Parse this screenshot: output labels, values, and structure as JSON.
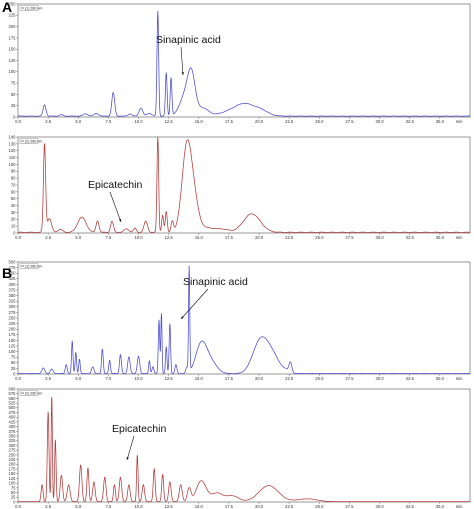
{
  "figure": {
    "panels": [
      {
        "label": "A",
        "first_chart": 0
      },
      {
        "label": "B",
        "first_chart": 2
      }
    ]
  },
  "chart_data": [
    {
      "type": "line",
      "panel": "A",
      "color": "#4a4ad0",
      "xlim": [
        0,
        37.5
      ],
      "ylim": [
        0,
        250
      ],
      "x_ticks": [
        "0.0",
        "2.5",
        "5.0",
        "7.5",
        "10.0",
        "12.5",
        "15.0",
        "17.5",
        "20.0",
        "22.5",
        "25.0",
        "27.5",
        "30.0",
        "32.5",
        "35.0",
        "min"
      ],
      "y_ticks": [
        "0",
        "25",
        "50",
        "75",
        "100",
        "125",
        "150",
        "175",
        "200",
        "225",
        "250"
      ],
      "baseline": 2,
      "peaks": [
        [
          2.2,
          25,
          0.12
        ],
        [
          3.6,
          3,
          0.15
        ],
        [
          5.6,
          5,
          0.2
        ],
        [
          6.5,
          6,
          0.18
        ],
        [
          7.9,
          52,
          0.12
        ],
        [
          9.3,
          5,
          0.15
        ],
        [
          10.2,
          18,
          0.15
        ],
        [
          10.9,
          6,
          0.2
        ],
        [
          11.6,
          232,
          0.07
        ],
        [
          12.3,
          96,
          0.07
        ],
        [
          12.7,
          84,
          0.07
        ],
        [
          13.9,
          48,
          0.45
        ],
        [
          14.4,
          76,
          0.3
        ],
        [
          15.3,
          18,
          0.5
        ],
        [
          17.0,
          3,
          0.6
        ],
        [
          18.8,
          28,
          1.0
        ],
        [
          20.3,
          6,
          0.5
        ]
      ],
      "annotations": [
        {
          "text": "Sinapinic acid",
          "x": 14.4,
          "y": 82
        }
      ]
    },
    {
      "type": "line",
      "panel": "A",
      "color": "#b23a3a",
      "xlim": [
        0,
        37.5
      ],
      "ylim": [
        0,
        140
      ],
      "x_ticks": [
        "0.0",
        "2.5",
        "5.0",
        "7.5",
        "10.0",
        "12.5",
        "15.0",
        "17.5",
        "20.0",
        "22.5",
        "25.0",
        "27.5",
        "30.0",
        "32.5",
        "35.0",
        "min"
      ],
      "y_ticks": [
        "0",
        "10",
        "20",
        "30",
        "40",
        "50",
        "60",
        "70",
        "80",
        "90",
        "100",
        "110",
        "120",
        "130",
        "140"
      ],
      "baseline": 1,
      "peaks": [
        [
          2.2,
          128,
          0.09
        ],
        [
          2.6,
          20,
          0.18
        ],
        [
          3.5,
          4,
          0.2
        ],
        [
          5.3,
          22,
          0.35
        ],
        [
          6.6,
          17,
          0.12
        ],
        [
          7.8,
          16,
          0.12
        ],
        [
          9.0,
          5,
          0.2
        ],
        [
          9.7,
          6,
          0.12
        ],
        [
          10.6,
          16,
          0.15
        ],
        [
          11.6,
          140,
          0.07
        ],
        [
          12.0,
          25,
          0.08
        ],
        [
          12.3,
          30,
          0.08
        ],
        [
          12.8,
          16,
          0.1
        ],
        [
          14.0,
          120,
          0.4
        ],
        [
          14.6,
          40,
          0.4
        ],
        [
          15.8,
          6,
          0.6
        ],
        [
          17.0,
          4,
          0.5
        ],
        [
          19.4,
          27,
          0.7
        ]
      ],
      "annotations": [
        {
          "text": "Epicatechin",
          "x": 9.8,
          "y": 6
        }
      ]
    },
    {
      "type": "line",
      "panel": "B",
      "color": "#4a4ad0",
      "xlim": [
        0,
        37.5
      ],
      "ylim": [
        0,
        500
      ],
      "x_ticks": [
        "0.0",
        "2.5",
        "5.0",
        "7.5",
        "10.0",
        "12.5",
        "15.0",
        "17.5",
        "20.0",
        "22.5",
        "25.0",
        "27.5",
        "30.0",
        "32.5",
        "35.0",
        "min"
      ],
      "y_ticks": [
        "0",
        "25",
        "50",
        "75",
        "100",
        "125",
        "150",
        "175",
        "200",
        "225",
        "250",
        "275",
        "300",
        "325",
        "350",
        "375",
        "400",
        "425",
        "450",
        "475",
        "500"
      ],
      "baseline": 2,
      "peaks": [
        [
          2.1,
          25,
          0.12
        ],
        [
          2.8,
          20,
          0.12
        ],
        [
          4.0,
          40,
          0.08
        ],
        [
          4.5,
          145,
          0.06
        ],
        [
          4.8,
          95,
          0.06
        ],
        [
          5.1,
          65,
          0.06
        ],
        [
          6.2,
          30,
          0.1
        ],
        [
          7.0,
          110,
          0.07
        ],
        [
          7.6,
          60,
          0.07
        ],
        [
          8.5,
          85,
          0.08
        ],
        [
          9.2,
          75,
          0.1
        ],
        [
          10.0,
          78,
          0.1
        ],
        [
          10.9,
          58,
          0.06
        ],
        [
          11.2,
          30,
          0.08
        ],
        [
          11.7,
          240,
          0.06
        ],
        [
          11.9,
          270,
          0.05
        ],
        [
          12.3,
          120,
          0.06
        ],
        [
          12.6,
          225,
          0.06
        ],
        [
          13.1,
          40,
          0.08
        ],
        [
          14.2,
          470,
          0.05
        ],
        [
          14.0,
          25,
          0.08
        ],
        [
          15.2,
          130,
          0.45
        ],
        [
          16.0,
          50,
          0.5
        ],
        [
          19.8,
          60,
          0.55
        ],
        [
          20.5,
          130,
          0.65
        ],
        [
          21.4,
          30,
          0.4
        ],
        [
          22.6,
          45,
          0.12
        ],
        [
          22.2,
          15,
          0.3
        ]
      ],
      "annotations": [
        {
          "text": "Sinapinic acid",
          "x": 14.2,
          "y": 470
        }
      ]
    },
    {
      "type": "line",
      "panel": "B",
      "color": "#b23a3a",
      "xlim": [
        0,
        37.5
      ],
      "ylim": [
        0,
        600
      ],
      "x_ticks": [
        "0.0",
        "2.5",
        "5.0",
        "7.5",
        "10.0",
        "12.5",
        "15.0",
        "17.5",
        "20.0",
        "22.5",
        "25.0",
        "27.5",
        "30.0",
        "32.5",
        "35.0",
        "min"
      ],
      "y_ticks": [
        "0",
        "25",
        "50",
        "75",
        "100",
        "125",
        "150",
        "175",
        "200",
        "225",
        "250",
        "275",
        "300",
        "325",
        "350",
        "375",
        "400",
        "425",
        "450",
        "475",
        "500",
        "525",
        "550",
        "575",
        "600"
      ],
      "baseline": 2,
      "peaks": [
        [
          2.0,
          90,
          0.08
        ],
        [
          2.5,
          480,
          0.07
        ],
        [
          2.8,
          570,
          0.05
        ],
        [
          3.1,
          330,
          0.06
        ],
        [
          3.6,
          140,
          0.1
        ],
        [
          4.2,
          90,
          0.12
        ],
        [
          5.2,
          195,
          0.1
        ],
        [
          5.8,
          180,
          0.08
        ],
        [
          6.3,
          105,
          0.1
        ],
        [
          7.2,
          130,
          0.1
        ],
        [
          8.0,
          90,
          0.08
        ],
        [
          8.5,
          130,
          0.1
        ],
        [
          9.2,
          90,
          0.1
        ],
        [
          9.9,
          250,
          0.06
        ],
        [
          10.4,
          90,
          0.1
        ],
        [
          11.3,
          175,
          0.08
        ],
        [
          12.0,
          145,
          0.08
        ],
        [
          12.6,
          105,
          0.1
        ],
        [
          13.5,
          90,
          0.12
        ],
        [
          14.2,
          70,
          0.15
        ],
        [
          15.2,
          110,
          0.4
        ],
        [
          16.5,
          45,
          0.5
        ],
        [
          17.8,
          30,
          0.5
        ],
        [
          20.8,
          85,
          0.8
        ],
        [
          24.0,
          15,
          0.8
        ]
      ],
      "annotations": [
        {
          "text": "Epicatechin",
          "x": 10.0,
          "y": 245
        }
      ]
    }
  ],
  "legend_boxes": [
    {
      "text": "(1) 280 nm"
    },
    {
      "text": "(2) 280 nm"
    },
    {
      "text": "(1) 280 nm"
    },
    {
      "text": "(2) 280 nm"
    }
  ]
}
